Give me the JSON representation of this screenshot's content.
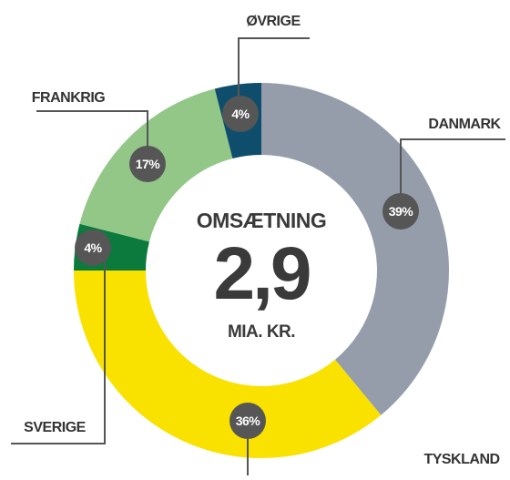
{
  "chart_data": {
    "type": "donut",
    "categories": [
      "DANMARK",
      "TYSKLAND",
      "SVERIGE",
      "FRANKRIG",
      "ØVRIGE"
    ],
    "values": [
      39,
      36,
      4,
      17,
      4
    ],
    "value_labels": [
      "39%",
      "36%",
      "4%",
      "17%",
      "4%"
    ],
    "colors": [
      "#959dab",
      "#f9e100",
      "#0b7a3c",
      "#92c788",
      "#0e4e6c"
    ],
    "center_title": "OMSÆTNING",
    "center_value": "2,9",
    "center_unit": "MIA. KR."
  }
}
